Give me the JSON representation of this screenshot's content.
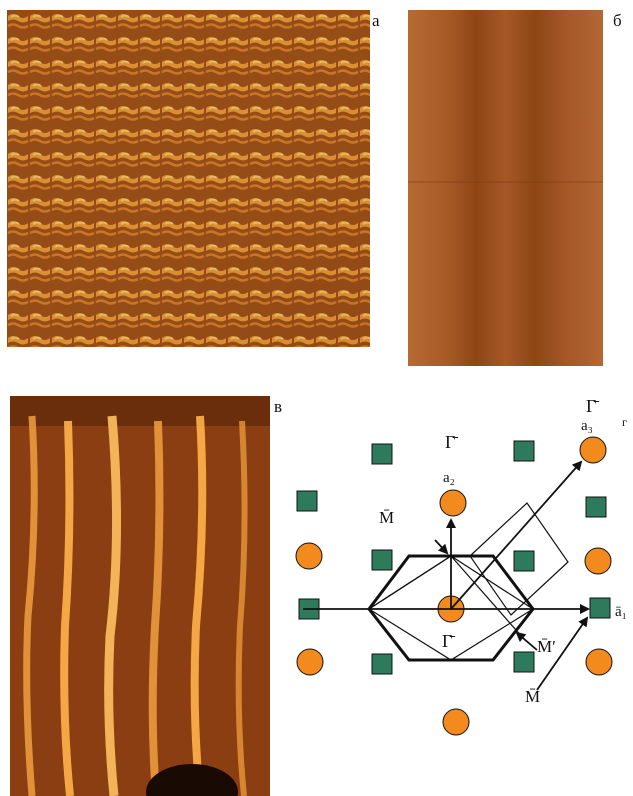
{
  "panel_labels": {
    "a": "а",
    "b": "б",
    "v": "в",
    "g": "г"
  },
  "diagram": {
    "top_gamma": "Γ̄",
    "top_a3": "a₃",
    "upper_gamma": "Γ̄",
    "a2": "a₂",
    "m_upper": "M̄",
    "center_gamma": "Γ̄",
    "m_prime": "M̄′",
    "a1": "ā₁",
    "m_lower": "M̄"
  },
  "colors": {
    "orange_node": "#f28a1e",
    "green_node": "#2e7a5c",
    "stm_dark": "#7a3a12",
    "stm_mid": "#c06a24",
    "stm_bright": "#ffc35a"
  }
}
